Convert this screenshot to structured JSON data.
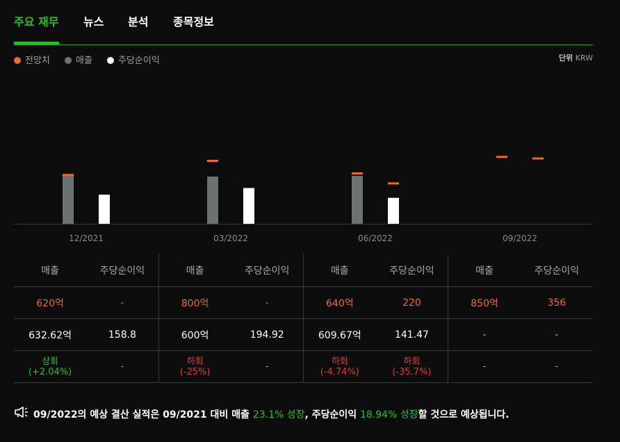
{
  "tabs": [
    "주요 재무",
    "뉴스",
    "분석",
    "종목정보"
  ],
  "legend": [
    {
      "label": "전망치",
      "color": "#f06a2a"
    },
    {
      "label": "매출",
      "color": "#6b7372"
    },
    {
      "label": "주당순이익",
      "color": "#ffffff"
    }
  ],
  "unit": {
    "label": "단위",
    "value": "KRW"
  },
  "chart_data": {
    "type": "bar",
    "categories": [
      "12/2021",
      "03/2022",
      "06/2022",
      "09/2022"
    ],
    "series": [
      {
        "name": "매출",
        "values": [
          632.62,
          600,
          609.67,
          null
        ],
        "color": "#6b7372"
      },
      {
        "name": "주당순이익",
        "values": [
          158.8,
          194.92,
          141.47,
          null
        ],
        "color": "#ffffff"
      }
    ],
    "estimates": [
      {
        "name": "매출",
        "values": [
          620,
          800,
          640,
          850
        ]
      },
      {
        "name": "주당순이익",
        "values": [
          null,
          null,
          220,
          356
        ]
      }
    ],
    "estimate_color": "#f06a2a"
  },
  "table": {
    "headers": [
      "매출",
      "주당순이익",
      "매출",
      "주당순이익",
      "매출",
      "주당순이익",
      "매출",
      "주당순이익"
    ],
    "estimates": [
      "620억",
      "-",
      "800억",
      "-",
      "640억",
      "220",
      "850억",
      "356"
    ],
    "actuals": [
      "632.62억",
      "158.8",
      "600억",
      "194.92",
      "609.67억",
      "141.47",
      "-",
      "-"
    ],
    "results": [
      {
        "word": "상회",
        "pct": "(+2.04%)",
        "dir": "up"
      },
      {
        "word": "-",
        "pct": "",
        "dir": "none"
      },
      {
        "word": "하회",
        "pct": "(-25%)",
        "dir": "down"
      },
      {
        "word": "-",
        "pct": "",
        "dir": "none"
      },
      {
        "word": "하회",
        "pct": "(-4.74%)",
        "dir": "down"
      },
      {
        "word": "하회",
        "pct": "(-35.7%)",
        "dir": "down"
      },
      {
        "word": "-",
        "pct": "",
        "dir": "none"
      },
      {
        "word": "-",
        "pct": "",
        "dir": "none"
      }
    ]
  },
  "summary": {
    "part1": "09/2022의 예상 결산 실적은 09/2021 대비 매출 ",
    "highlight1": "23.1% 성장",
    "part2": ", 주당순이익 ",
    "highlight2": "18.94% 성장",
    "part3": "할 것으로 예상됩니다."
  }
}
